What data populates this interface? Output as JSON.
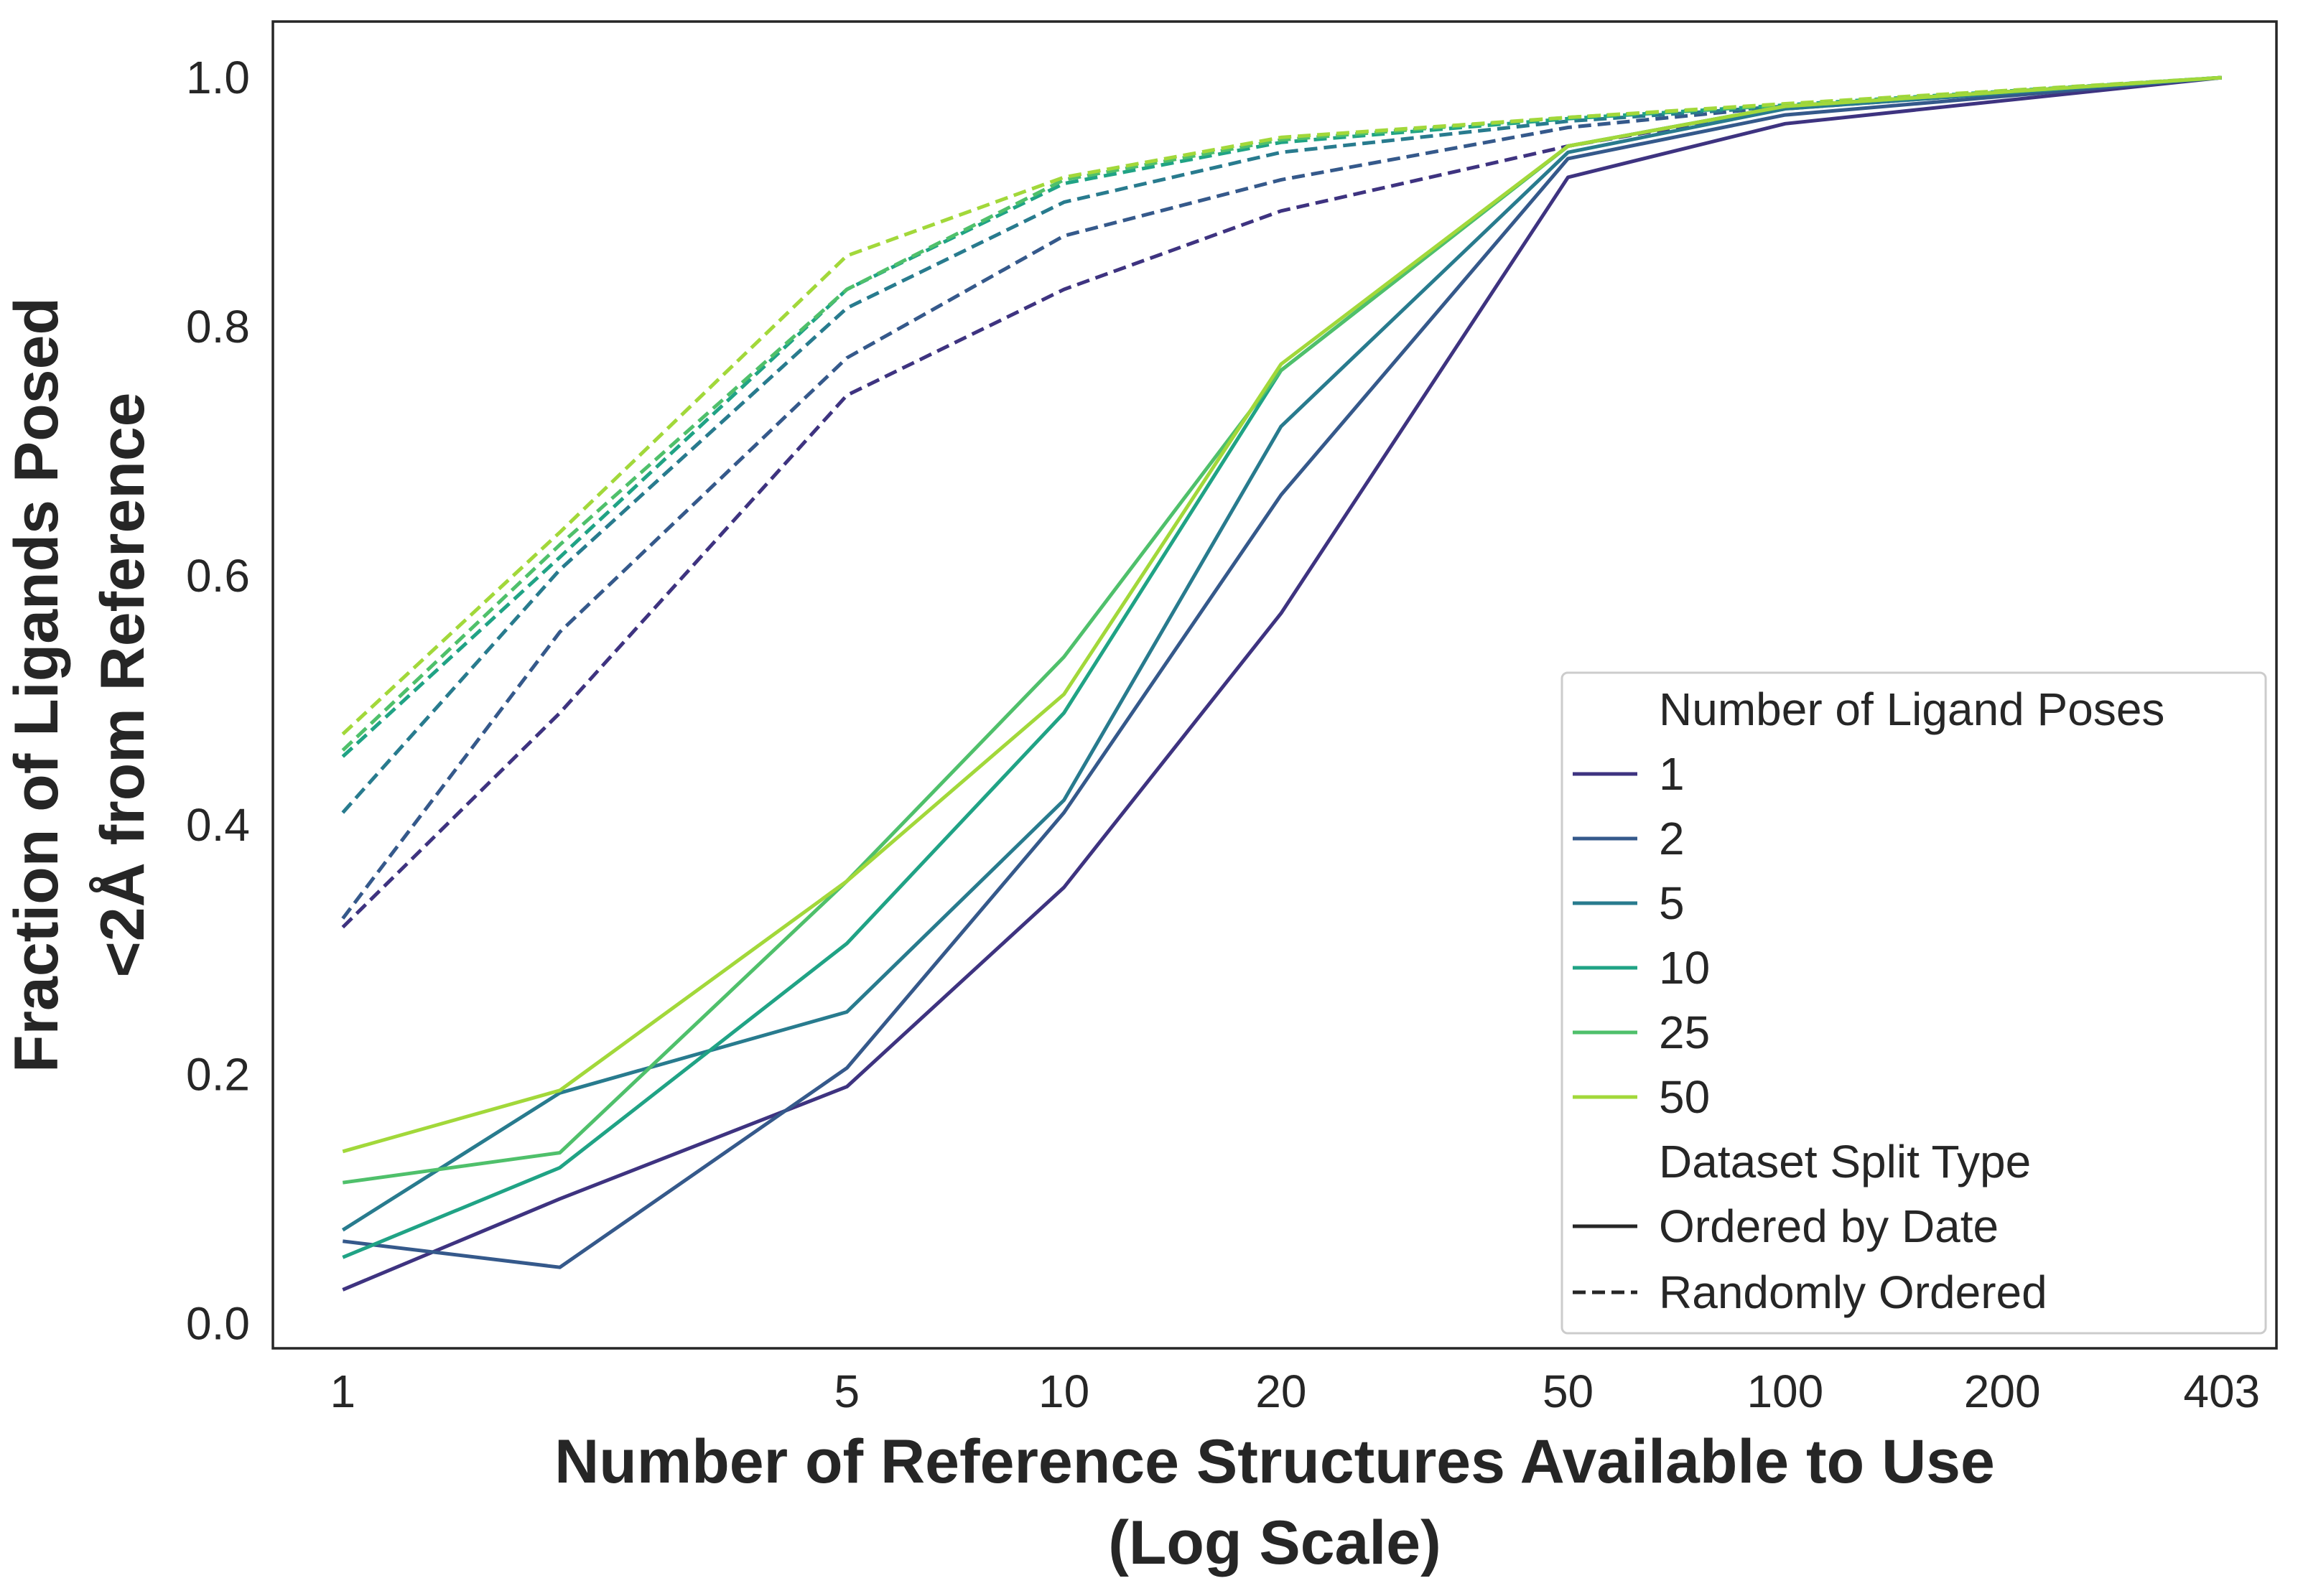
{
  "chart_data": {
    "type": "line",
    "title": "",
    "xlabel": "Number of Reference Structures Available to Use",
    "xlabel_line2": "(Log Scale)",
    "ylabel": "Fraction of Ligands Posed",
    "ylabel_line2": "<2Å from Reference",
    "xscale": "log",
    "xlim": [
      0.8,
      480
    ],
    "ylim": [
      -0.02,
      1.045
    ],
    "grid": false,
    "xticks": [
      1,
      5,
      10,
      20,
      50,
      100,
      200,
      403
    ],
    "xtick_labels": [
      "1",
      "5",
      "10",
      "20",
      "50",
      "100",
      "200",
      "403"
    ],
    "yticks": [
      0.0,
      0.2,
      0.4,
      0.6,
      0.8,
      1.0
    ],
    "ytick_labels": [
      "0.0",
      "0.2",
      "0.4",
      "0.6",
      "0.8",
      "1.0"
    ],
    "x": [
      1,
      2,
      5,
      10,
      20,
      50,
      100,
      403
    ],
    "legend": {
      "placement": "lower-right",
      "hue_title": "Number of Ligand Poses",
      "style_title": "Dataset Split Type",
      "styles": [
        {
          "label": "Ordered by Date",
          "dash": "solid"
        },
        {
          "label": "Randomly Ordered",
          "dash": "dashed"
        }
      ]
    },
    "series": [
      {
        "name": "1",
        "color": "#3e3380",
        "ordered": [
          0.027,
          0.1,
          0.19,
          0.35,
          0.57,
          0.92,
          0.963,
          1.0
        ],
        "random": [
          0.318,
          0.49,
          0.745,
          0.83,
          0.893,
          0.945,
          0.975,
          1.0
        ]
      },
      {
        "name": "2",
        "color": "#35598b",
        "ordered": [
          0.066,
          0.045,
          0.205,
          0.41,
          0.665,
          0.935,
          0.97,
          1.0
        ],
        "random": [
          0.325,
          0.555,
          0.775,
          0.873,
          0.918,
          0.96,
          0.977,
          1.0
        ]
      },
      {
        "name": "5",
        "color": "#287b8e",
        "ordered": [
          0.075,
          0.185,
          0.25,
          0.42,
          0.72,
          0.94,
          0.975,
          1.0
        ],
        "random": [
          0.41,
          0.605,
          0.815,
          0.9,
          0.94,
          0.965,
          0.977,
          1.0
        ]
      },
      {
        "name": "10",
        "color": "#20a385",
        "ordered": [
          0.053,
          0.125,
          0.305,
          0.49,
          0.765,
          0.945,
          0.977,
          1.0
        ],
        "random": [
          0.455,
          0.615,
          0.83,
          0.915,
          0.948,
          0.967,
          0.978,
          1.0
        ]
      },
      {
        "name": "25",
        "color": "#4fc06b",
        "ordered": [
          0.113,
          0.137,
          0.355,
          0.535,
          0.765,
          0.945,
          0.977,
          1.0
        ],
        "random": [
          0.46,
          0.625,
          0.83,
          0.918,
          0.95,
          0.968,
          0.978,
          1.0
        ]
      },
      {
        "name": "50",
        "color": "#a2d83a",
        "ordered": [
          0.138,
          0.187,
          0.355,
          0.505,
          0.77,
          0.945,
          0.977,
          1.0
        ],
        "random": [
          0.473,
          0.635,
          0.857,
          0.92,
          0.952,
          0.968,
          0.979,
          1.0
        ]
      }
    ]
  }
}
